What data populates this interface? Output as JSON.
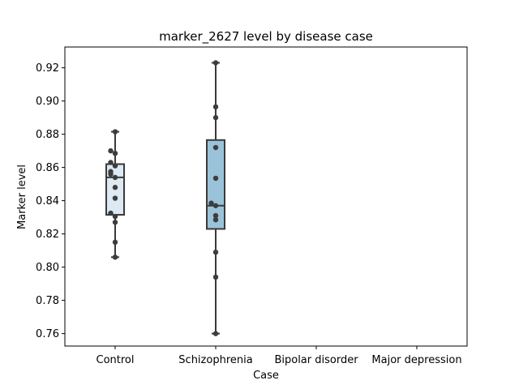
{
  "chart_data": {
    "type": "box",
    "title": "marker_2627 level by disease case",
    "xlabel": "Case",
    "ylabel": "Marker level",
    "categories": [
      "Control",
      "Schizophrenia",
      "Bipolar disorder",
      "Major depression"
    ],
    "ylim": [
      0.7525,
      0.9325
    ],
    "yticks": [
      0.76,
      0.78,
      0.8,
      0.82,
      0.84,
      0.86,
      0.88,
      0.9,
      0.92
    ],
    "ytick_labels": [
      "0.76",
      "0.78",
      "0.80",
      "0.82",
      "0.84",
      "0.86",
      "0.88",
      "0.90",
      "0.92"
    ],
    "grid": false,
    "colors": {
      "box_fill": [
        "#dde9f3",
        "#9ac3d9"
      ],
      "box_edge": "#3a3a3a",
      "point": "#3d3d3d"
    },
    "boxes": [
      {
        "category": "Control",
        "min": 0.806,
        "q1": 0.8315,
        "median": 0.854,
        "q3": 0.862,
        "max": 0.8815
      },
      {
        "category": "Schizophrenia",
        "min": 0.76,
        "q1": 0.823,
        "median": 0.837,
        "q3": 0.8765,
        "max": 0.923
      },
      {
        "category": "Bipolar disorder",
        "values": []
      },
      {
        "category": "Major depression",
        "values": []
      }
    ],
    "points": [
      {
        "category": "Control",
        "values": [
          0.8815,
          0.87,
          0.8685,
          0.863,
          0.861,
          0.8575,
          0.856,
          0.854,
          0.848,
          0.8415,
          0.8325,
          0.8305,
          0.827,
          0.815,
          0.806
        ]
      },
      {
        "category": "Schizophrenia",
        "values": [
          0.923,
          0.8965,
          0.89,
          0.872,
          0.8535,
          0.8385,
          0.837,
          0.831,
          0.8285,
          0.809,
          0.794,
          0.76
        ]
      }
    ]
  }
}
